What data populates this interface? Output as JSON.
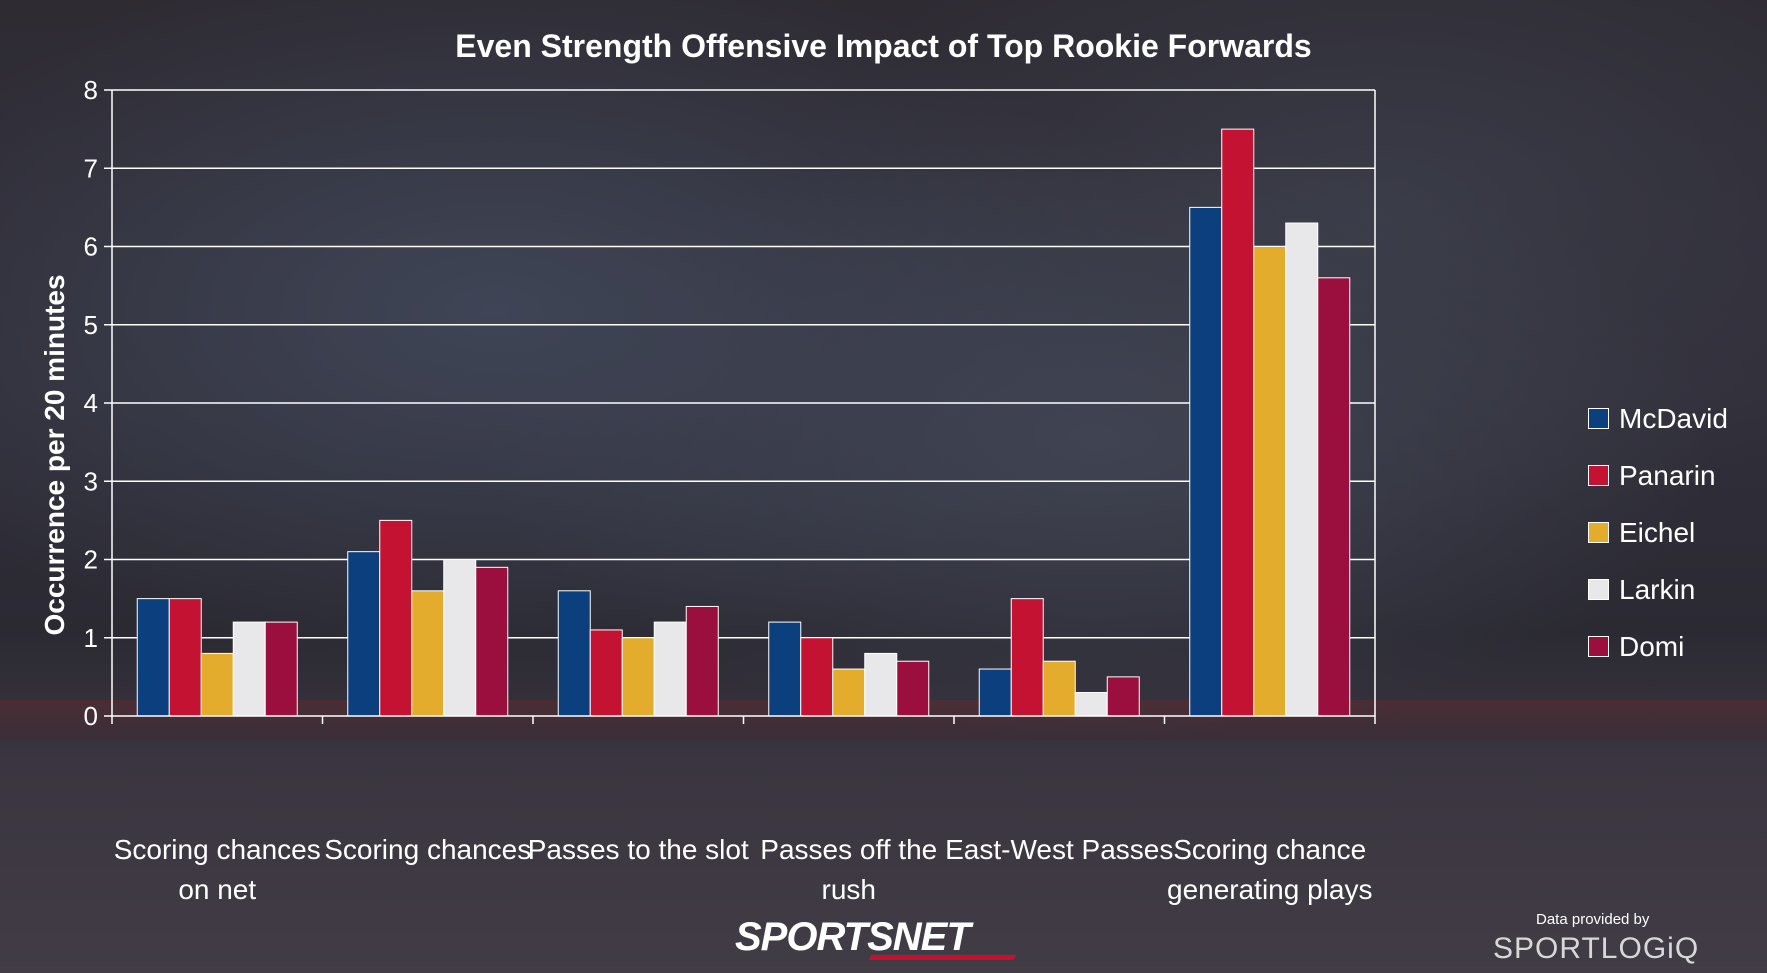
{
  "chart_data": {
    "type": "bar",
    "title": "Even Strength Offensive Impact of Top Rookie Forwards",
    "ylabel": "Occurrence per 20 minutes",
    "xlabel": "",
    "ylim": [
      0,
      8
    ],
    "yticks": [
      0,
      1,
      2,
      3,
      4,
      5,
      6,
      7,
      8
    ],
    "grid": true,
    "legend_position": "right",
    "categories": [
      "Scoring chances on net",
      "Scoring chances",
      "Passes to the slot",
      "Passes off the rush",
      "East-West Passes",
      "Scoring chance generating plays"
    ],
    "series": [
      {
        "name": "McDavid",
        "color": "#0b3f7e",
        "values": [
          1.5,
          2.1,
          1.6,
          1.2,
          0.6,
          6.5
        ]
      },
      {
        "name": "Panarin",
        "color": "#c41232",
        "values": [
          1.5,
          2.5,
          1.1,
          1.0,
          1.5,
          7.5
        ]
      },
      {
        "name": "Eichel",
        "color": "#e3ac2c",
        "values": [
          0.8,
          1.6,
          1.0,
          0.6,
          0.7,
          6.0
        ]
      },
      {
        "name": "Larkin",
        "color": "#e8e8ea",
        "values": [
          1.2,
          2.0,
          1.2,
          0.8,
          0.3,
          6.3
        ]
      },
      {
        "name": "Domi",
        "color": "#9b0f3e",
        "values": [
          1.2,
          1.9,
          1.4,
          0.7,
          0.5,
          5.6
        ]
      }
    ]
  },
  "branding": {
    "logo_text": "SPORTSNET",
    "credit": "Data provided by",
    "provider": "SPORTLOGiQ"
  }
}
